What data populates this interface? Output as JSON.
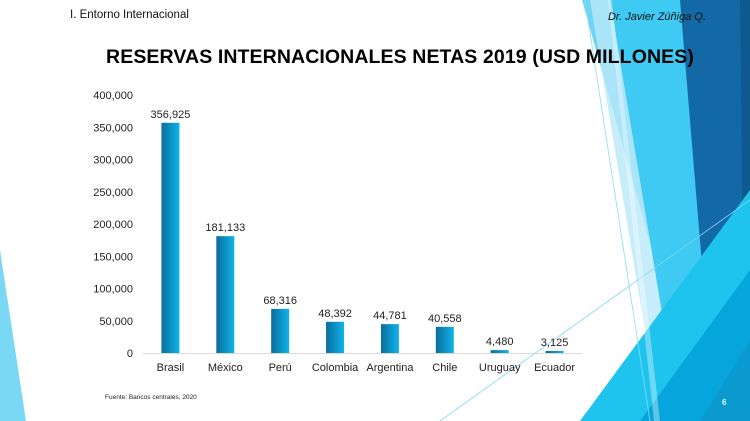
{
  "header": {
    "section": "I. Entorno Internacional",
    "author": "Dr. Javier Zúñiga Q."
  },
  "footer": {
    "source": "Fuente: Bancos centrales, 2020",
    "page_number": "6"
  },
  "colors": {
    "bar_dark": "#0a6d9c",
    "bar_light": "#0fb4ea",
    "accent_light": "#7ad8f5",
    "accent_mid": "#33c4f0",
    "accent_dark": "#1369a6"
  },
  "chart_data": {
    "type": "bar",
    "title": "RESERVAS INTERNACIONALES NETAS 2019 (USD MILLONES)",
    "xlabel": "",
    "ylabel": "",
    "ylim": [
      0,
      400000
    ],
    "yticks": [
      0,
      50000,
      100000,
      150000,
      200000,
      250000,
      300000,
      350000,
      400000
    ],
    "ytick_labels": [
      "0",
      "50,000",
      "100,000",
      "150,000",
      "200,000",
      "250,000",
      "300,000",
      "350,000",
      "400,000"
    ],
    "grid": false,
    "legend": "none",
    "categories": [
      "Brasil",
      "México",
      "Perú",
      "Colombia",
      "Argentina",
      "Chile",
      "Uruguay",
      "Ecuador"
    ],
    "values": [
      356925,
      181133,
      68316,
      48392,
      44781,
      40558,
      4480,
      3125
    ],
    "data_labels": [
      "356,925",
      "181,133",
      "68,316",
      "48,392",
      "44,781",
      "40,558",
      "4,480",
      "3,125"
    ]
  }
}
